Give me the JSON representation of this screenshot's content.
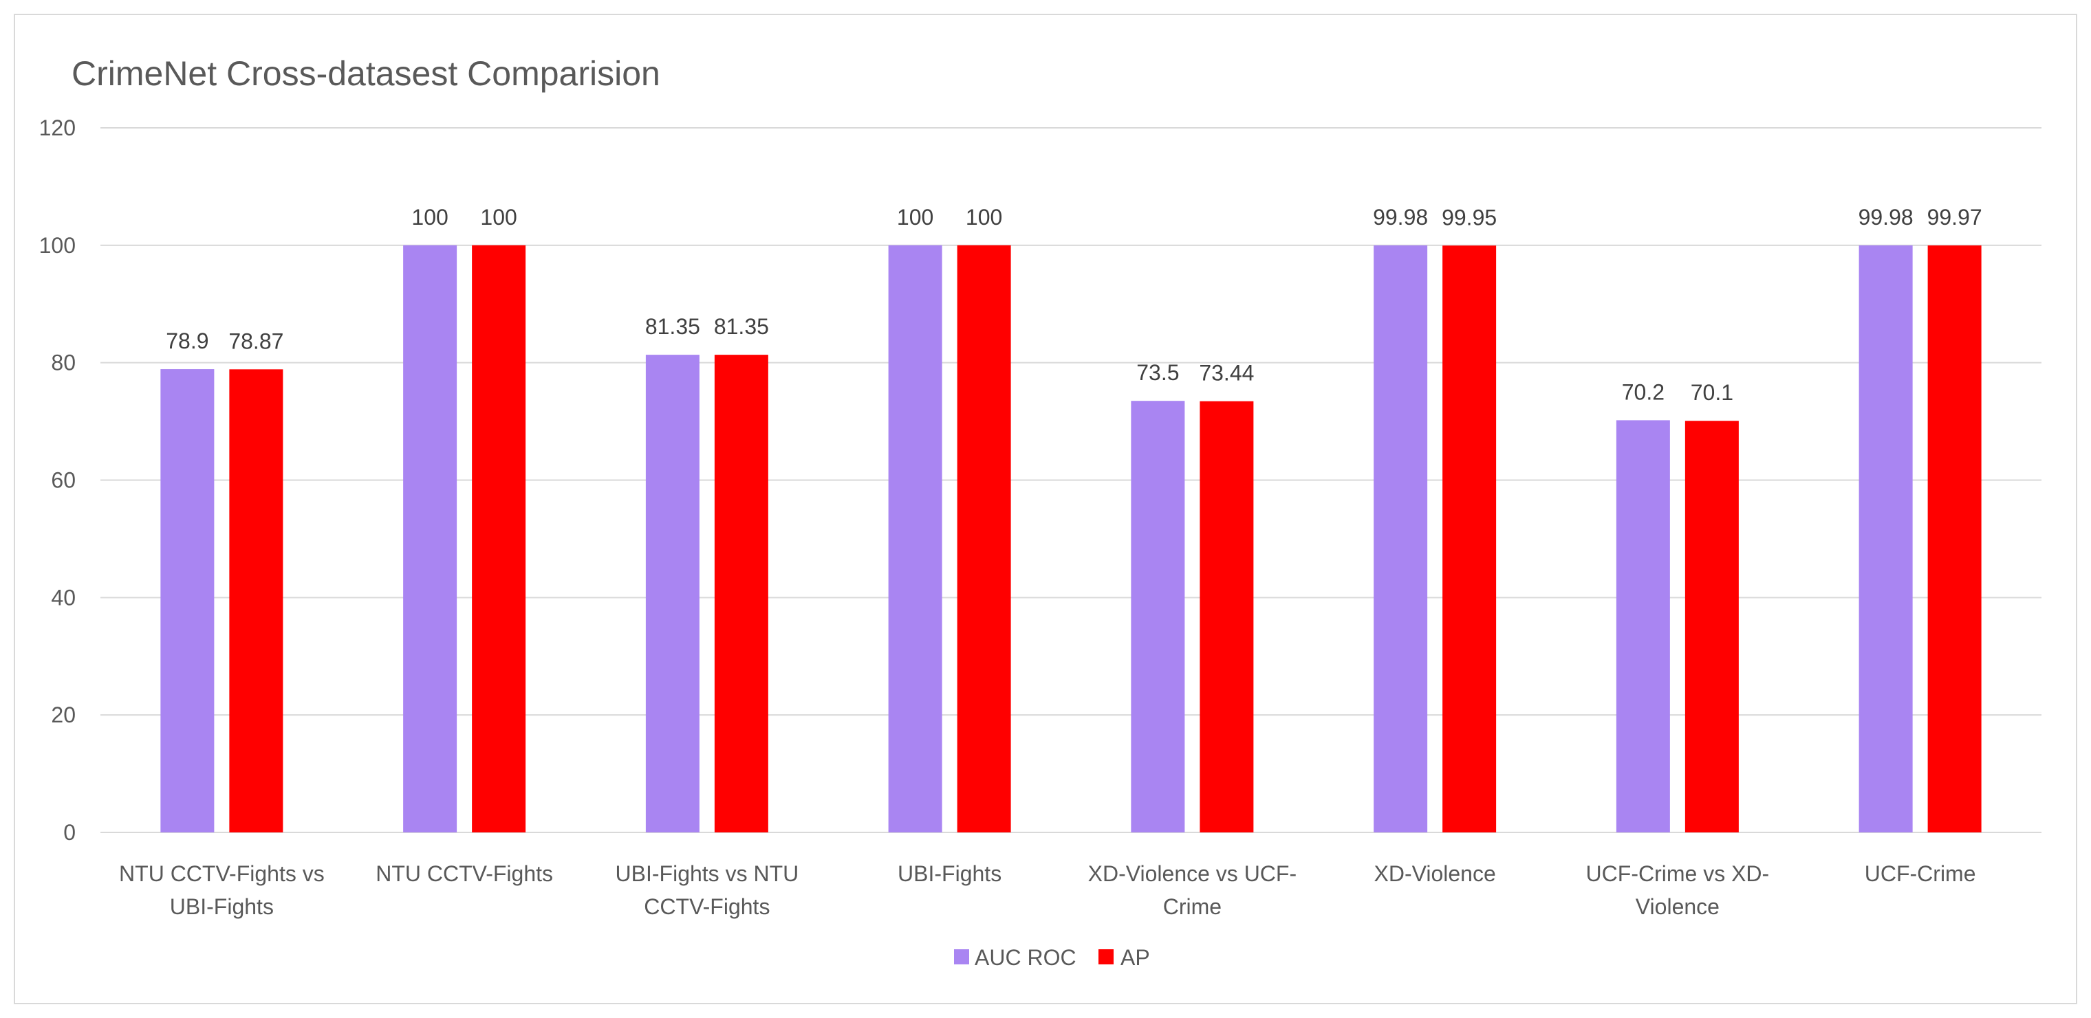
{
  "chart_data": {
    "type": "bar",
    "title": "CrimeNet Cross-datasest Comparision",
    "categories": [
      [
        "NTU CCTV-Fights vs",
        "UBI-Fights"
      ],
      [
        "NTU CCTV-Fights"
      ],
      [
        "UBI-Fights vs NTU",
        "CCTV-Fights"
      ],
      [
        "UBI-Fights"
      ],
      [
        "XD-Violence vs UCF-",
        "Crime"
      ],
      [
        "XD-Violence"
      ],
      [
        "UCF-Crime vs XD-",
        "Violence"
      ],
      [
        "UCF-Crime"
      ]
    ],
    "series": [
      {
        "name": "AUC ROC",
        "color": "#a985f2",
        "values": [
          78.9,
          100,
          81.35,
          100,
          73.5,
          99.98,
          70.2,
          99.98
        ],
        "labels": [
          "78.9",
          "100",
          "81.35",
          "100",
          "73.5",
          "99.98",
          "70.2",
          "99.98"
        ]
      },
      {
        "name": "AP",
        "color": "#ff0000",
        "values": [
          78.87,
          100,
          81.35,
          100,
          73.44,
          99.95,
          70.1,
          99.97
        ],
        "labels": [
          "78.87",
          "100",
          "81.35",
          "100",
          "73.44",
          "99.95",
          "70.1",
          "99.97"
        ]
      }
    ],
    "ylim": [
      0,
      120
    ],
    "yticks": [
      "0",
      "20",
      "40",
      "60",
      "80",
      "100",
      "120"
    ],
    "xlabel": "",
    "ylabel": "",
    "grid": true,
    "legend_position": "bottom-center",
    "colors": {
      "gridline": "#d9d9d9",
      "axis_text": "#595959"
    }
  }
}
